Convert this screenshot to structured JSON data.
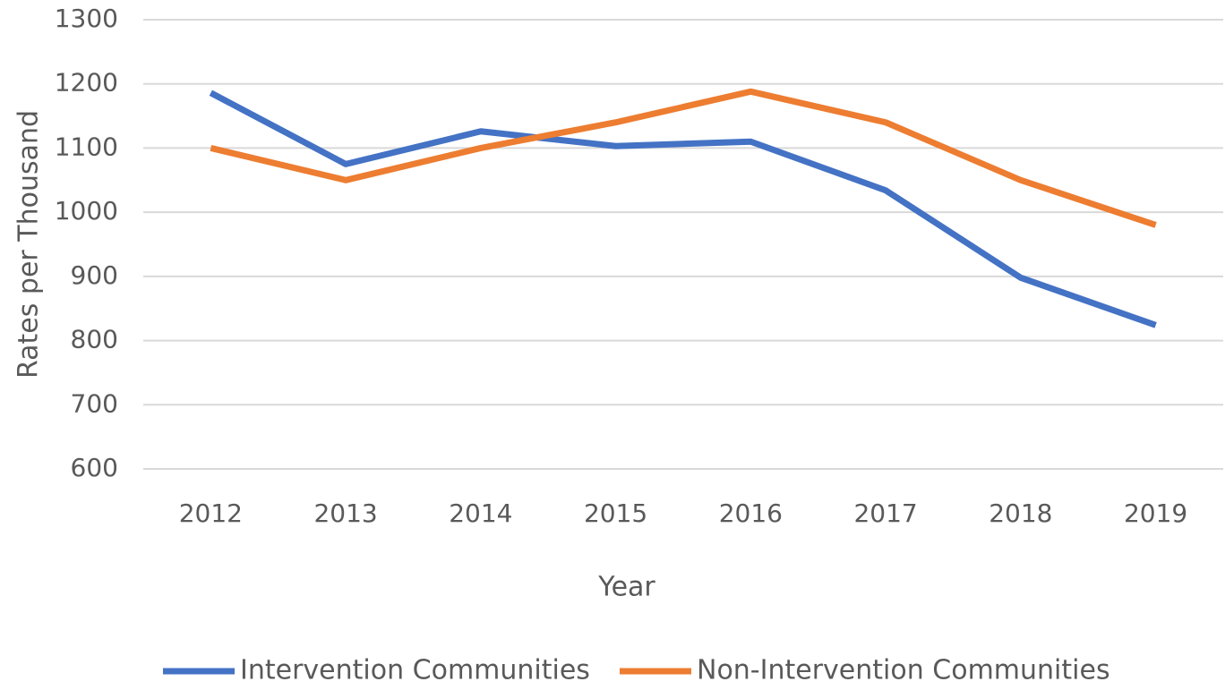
{
  "chart_data": {
    "type": "line",
    "x_label": "Year",
    "y_label": "Rates per Thousand",
    "categories": [
      "2012",
      "2013",
      "2014",
      "2015",
      "2016",
      "2017",
      "2018",
      "2019"
    ],
    "series": [
      {
        "name": "Intervention Communities",
        "color": "#4472c4",
        "values": [
          1186,
          1075,
          1126,
          1103,
          1110,
          1034,
          898,
          824
        ]
      },
      {
        "name": "Non-Intervention Communities",
        "color": "#ed7d31",
        "values": [
          1100,
          1050,
          1100,
          1140,
          1188,
          1140,
          1050,
          980
        ]
      }
    ],
    "ylim": [
      600,
      1300
    ],
    "yticks": [
      600,
      700,
      800,
      900,
      1000,
      1100,
      1200,
      1300
    ],
    "grid": true,
    "legend": "bottom"
  }
}
